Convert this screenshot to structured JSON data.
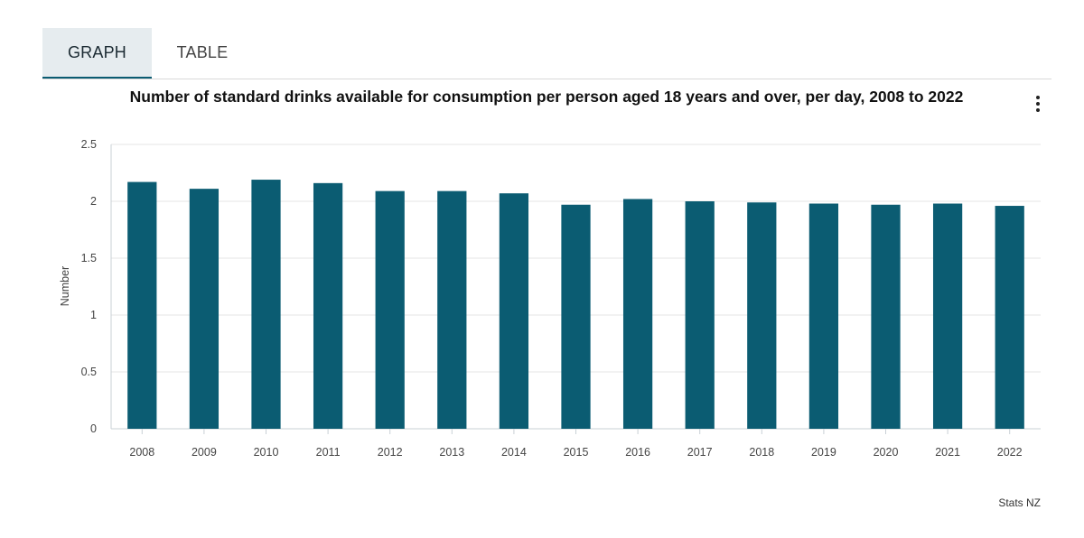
{
  "tabs": [
    {
      "label": "GRAPH",
      "active": true
    },
    {
      "label": "TABLE",
      "active": false
    }
  ],
  "menu": {
    "icon": "more-vertical-icon"
  },
  "credit": "Stats NZ",
  "colors": {
    "bar": "#0b5c72",
    "grid": "#e6e6e6",
    "axis": "#c9d0d6"
  },
  "chart_data": {
    "type": "bar",
    "title": "Number of standard drinks available for consumption per person aged 18 years and over, per day, 2008 to 2022",
    "xlabel": "",
    "ylabel": "Number",
    "ylim": [
      0,
      2.5
    ],
    "yticks": [
      0,
      0.5,
      1,
      1.5,
      2,
      2.5
    ],
    "ytick_labels": [
      "0",
      "0.5",
      "1",
      "1.5",
      "2",
      "2.5"
    ],
    "categories": [
      "2008",
      "2009",
      "2010",
      "2011",
      "2012",
      "2013",
      "2014",
      "2015",
      "2016",
      "2017",
      "2018",
      "2019",
      "2020",
      "2021",
      "2022"
    ],
    "values": [
      2.17,
      2.11,
      2.19,
      2.16,
      2.09,
      2.09,
      2.07,
      1.97,
      2.02,
      2.0,
      1.99,
      1.98,
      1.97,
      1.98,
      1.96
    ],
    "grid": true,
    "legend": "none"
  }
}
